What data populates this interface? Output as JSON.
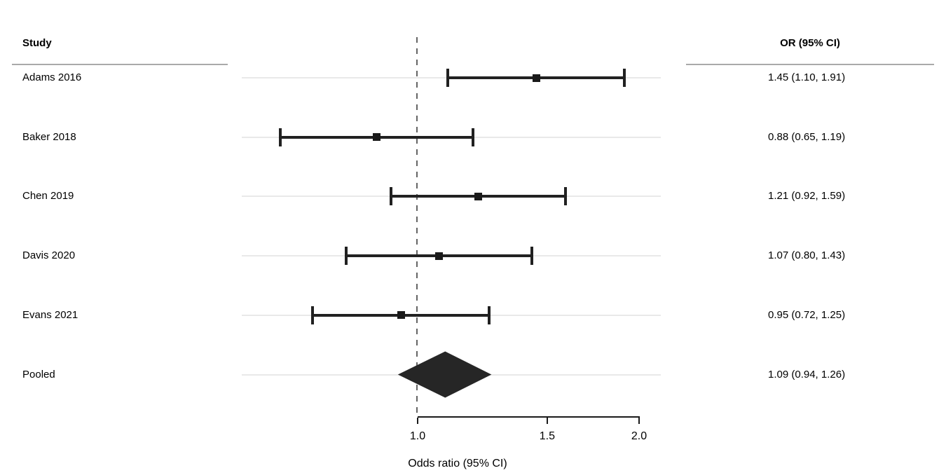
{
  "header": {
    "study_col": "Study",
    "or_col": "OR (95% CI)"
  },
  "chart_data": {
    "type": "forest",
    "xlabel": "Odds ratio (95% CI)",
    "x_scale": "log",
    "x_ticks": [
      1.0,
      1.5,
      2.0
    ],
    "x_tick_labels": [
      "1.0",
      "1.5",
      "2.0"
    ],
    "x_range_drawn": [
      1.0,
      2.0
    ],
    "reference_line": 1.0,
    "legend_position": "none",
    "grid": "light horizontal row lines",
    "studies": [
      {
        "label": "Adams 2016",
        "or": 1.45,
        "ci_low": 1.1,
        "ci_high": 1.91,
        "display": "1.45 (1.10, 1.91)"
      },
      {
        "label": "Baker 2018",
        "or": 0.88,
        "ci_low": 0.65,
        "ci_high": 1.19,
        "display": "0.88 (0.65, 1.19)"
      },
      {
        "label": "Chen 2019",
        "or": 1.21,
        "ci_low": 0.92,
        "ci_high": 1.59,
        "display": "1.21 (0.92, 1.59)"
      },
      {
        "label": "Davis 2020",
        "or": 1.07,
        "ci_low": 0.8,
        "ci_high": 1.43,
        "display": "1.07 (0.80, 1.43)"
      },
      {
        "label": "Evans 2021",
        "or": 0.95,
        "ci_low": 0.72,
        "ci_high": 1.25,
        "display": "0.95 (0.72, 1.25)"
      }
    ],
    "pooled": {
      "label": "Pooled",
      "or": 1.09,
      "ci_low": 0.94,
      "ci_high": 1.26,
      "display": "1.09 (0.94, 1.26)"
    }
  },
  "colors": {
    "marker": "#1a1a1a",
    "ci_line": "#212121",
    "diamond": "#262626",
    "gridline": "#e9e9e9",
    "header_rule": "#a9a9a9",
    "reference_line": "#646464",
    "axis": "#1a1a1a",
    "text": "#000000",
    "background": "#ffffff"
  }
}
